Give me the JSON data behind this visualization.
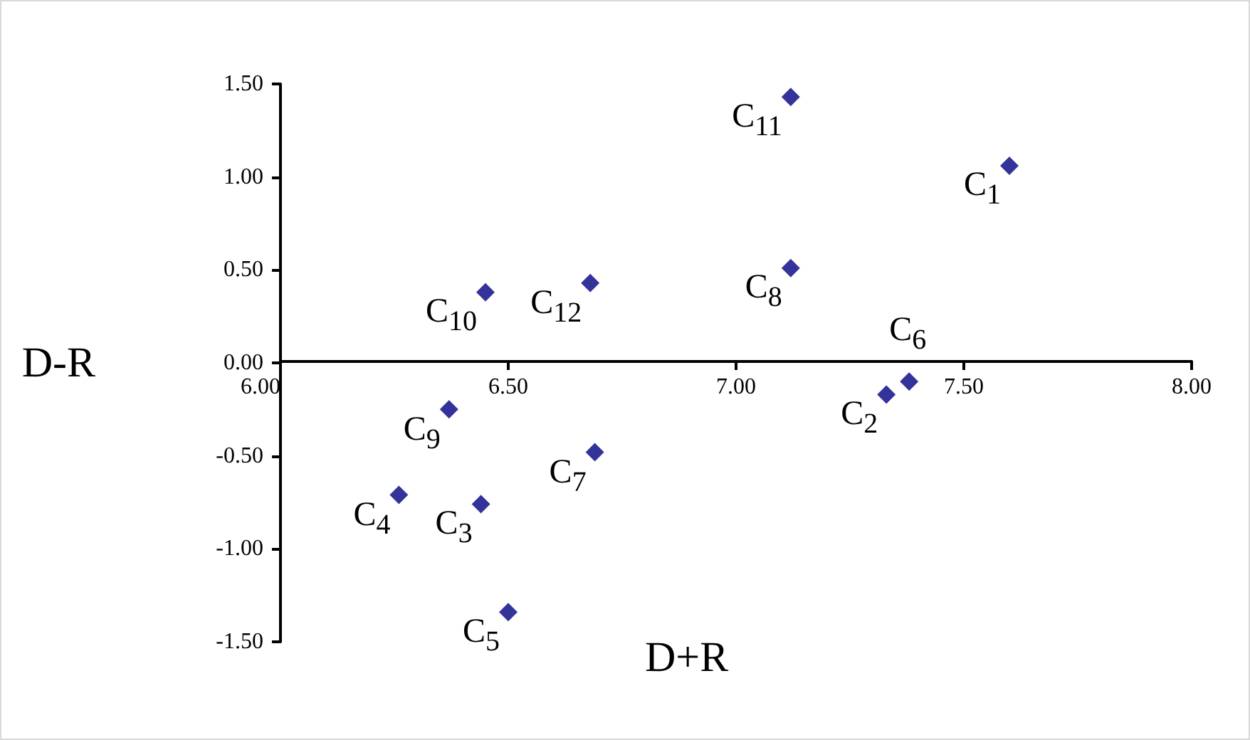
{
  "chart_data": {
    "type": "scatter",
    "xlabel": "D+R",
    "ylabel": "D-R",
    "x": [
      7.6,
      7.33,
      6.44,
      6.26,
      6.5,
      7.38,
      6.69,
      7.12,
      6.37,
      6.45,
      7.12,
      6.68
    ],
    "series": [
      {
        "color": "#000080",
        "values": [
          1.06,
          -0.17,
          -0.76,
          -0.71,
          -1.34,
          -0.1,
          -0.48,
          0.51,
          -0.25,
          0.38,
          1.43,
          0.43
        ]
      }
    ],
    "xlim": [
      6.0,
      8.0
    ],
    "xticks": [
      {
        "value": 6.0,
        "label": "6.00"
      },
      {
        "value": 6.5,
        "label": "6.50"
      },
      {
        "value": 7.0,
        "label": "7.00"
      },
      {
        "value": 7.5,
        "label": "7.50"
      },
      {
        "value": 8.0,
        "label": "8.00"
      }
    ],
    "ylim": [
      -1.5,
      1.5
    ],
    "yticks": [
      {
        "value": -1.5,
        "label": "-1.50"
      },
      {
        "value": -1.0,
        "label": "-1.00"
      },
      {
        "value": -0.5,
        "label": "-0.50"
      },
      {
        "value": 0,
        "label": "0.00"
      },
      {
        "value": 0.5,
        "label": "0.50"
      },
      {
        "value": 1.0,
        "label": "1.00"
      },
      {
        "value": 1.5,
        "label": "1.50"
      }
    ],
    "marker": "diamond",
    "grid": false,
    "annotations": [
      {
        "text": "C$_{1}$",
        "x": 7.6,
        "y": 1.06
      },
      {
        "text": "C$_{2}$",
        "x": 7.33,
        "y": -0.17
      },
      {
        "text": "C$_{3}$",
        "x": 6.44,
        "y": -0.76
      },
      {
        "text": "C$_{4}$",
        "x": 6.26,
        "y": -0.71
      },
      {
        "text": "C$_{5}$",
        "x": 6.5,
        "y": -1.34
      },
      {
        "text": "C$_{6}$",
        "x": 7.38,
        "y": -0.1
      },
      {
        "text": "C$_{7}$",
        "x": 6.69,
        "y": -0.48
      },
      {
        "text": "C$_{8}$",
        "x": 7.12,
        "y": 0.51
      },
      {
        "text": "C$_{9}$",
        "x": 6.37,
        "y": -0.25
      },
      {
        "text": "C$_{10}$",
        "x": 6.45,
        "y": 0.38
      },
      {
        "text": "C$_{11}$",
        "x": 7.12,
        "y": 1.43
      },
      {
        "text": "C$_{12}$",
        "x": 6.68,
        "y": 0.43
      }
    ]
  }
}
